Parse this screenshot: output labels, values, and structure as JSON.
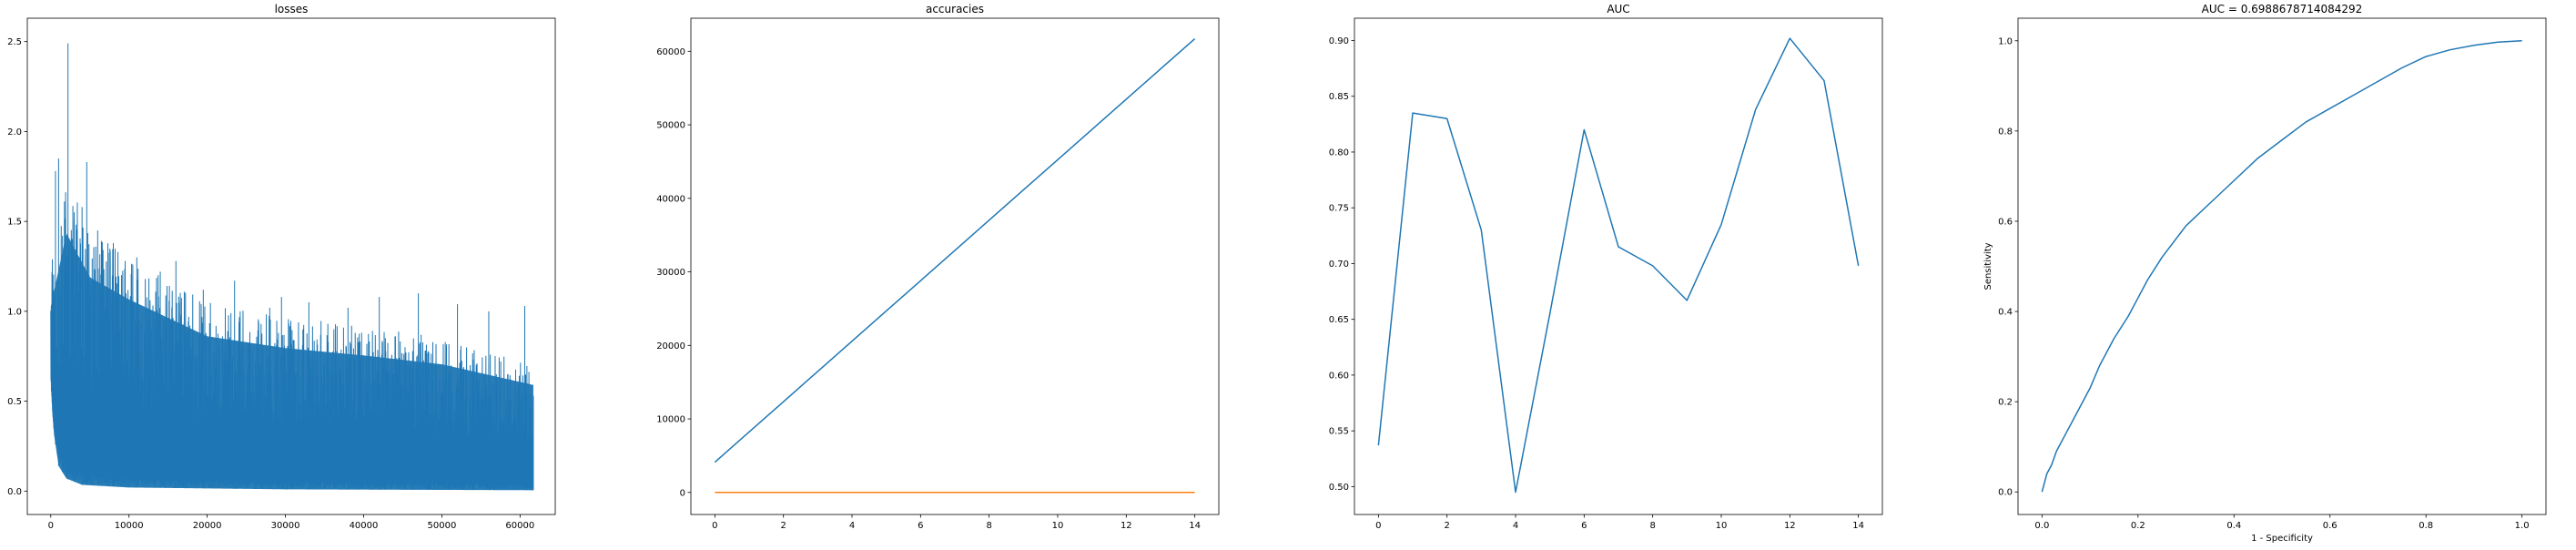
{
  "chart_data": [
    {
      "type": "line",
      "title": "losses",
      "xlabel": "",
      "ylabel": "",
      "xlim": [
        -3000,
        64500
      ],
      "ylim": [
        -0.13,
        2.63
      ],
      "xticks": [
        0,
        10000,
        20000,
        30000,
        40000,
        50000,
        60000
      ],
      "xtick_labels": [
        "0",
        "10000",
        "20000",
        "30000",
        "40000",
        "50000",
        "60000"
      ],
      "yticks": [
        0.0,
        0.5,
        1.0,
        1.5,
        2.0,
        2.5
      ],
      "ytick_labels": [
        "0.0",
        "0.5",
        "1.0",
        "1.5",
        "2.0",
        "2.5"
      ],
      "grid": false,
      "series": [
        {
          "color": "#1f77b4",
          "style": "dense-noisy",
          "n_points": 61700,
          "x_range": [
            0,
            61700
          ],
          "lower_envelope": [
            [
              0,
              0.62
            ],
            [
              300,
              0.35
            ],
            [
              1000,
              0.14
            ],
            [
              2000,
              0.07
            ],
            [
              4000,
              0.035
            ],
            [
              10000,
              0.02
            ],
            [
              30000,
              0.01
            ],
            [
              61700,
              0.005
            ]
          ],
          "upper_envelope": [
            [
              0,
              1.25
            ],
            [
              2000,
              1.75
            ],
            [
              5000,
              1.45
            ],
            [
              10000,
              1.3
            ],
            [
              20000,
              1.05
            ],
            [
              30000,
              0.97
            ],
            [
              40000,
              0.92
            ],
            [
              50000,
              0.86
            ],
            [
              61700,
              0.72
            ]
          ],
          "spikes": [
            [
              600,
              1.78
            ],
            [
              1000,
              1.85
            ],
            [
              1500,
              1.42
            ],
            [
              2200,
              2.49
            ],
            [
              3000,
              1.55
            ],
            [
              4000,
              1.58
            ],
            [
              4600,
              1.83
            ],
            [
              6000,
              1.45
            ],
            [
              8000,
              1.38
            ],
            [
              11000,
              1.3
            ],
            [
              14000,
              1.22
            ],
            [
              16000,
              1.28
            ],
            [
              19500,
              1.12
            ],
            [
              23500,
              1.17
            ],
            [
              28000,
              1.02
            ],
            [
              29500,
              1.08
            ],
            [
              33000,
              1.05
            ],
            [
              38000,
              1.02
            ],
            [
              42000,
              1.08
            ],
            [
              47000,
              1.1
            ],
            [
              52000,
              1.04
            ],
            [
              56000,
              1.0
            ],
            [
              60600,
              1.03
            ]
          ],
          "end_value": 0.53
        }
      ]
    },
    {
      "type": "line",
      "title": "accuracies",
      "xlabel": "",
      "ylabel": "",
      "xlim": [
        -0.7,
        14.7
      ],
      "ylim": [
        -3000,
        64500
      ],
      "xticks": [
        0,
        2,
        4,
        6,
        8,
        10,
        12,
        14
      ],
      "xtick_labels": [
        "0",
        "2",
        "4",
        "6",
        "8",
        "10",
        "12",
        "14"
      ],
      "yticks": [
        0,
        10000,
        20000,
        30000,
        40000,
        50000,
        60000
      ],
      "ytick_labels": [
        "0",
        "10000",
        "20000",
        "30000",
        "40000",
        "50000",
        "60000"
      ],
      "grid": false,
      "series": [
        {
          "color": "#1f77b4",
          "x": [
            0,
            1,
            2,
            3,
            4,
            5,
            6,
            7,
            8,
            9,
            10,
            11,
            12,
            13,
            14
          ],
          "values": [
            4114,
            8228,
            12342,
            16456,
            20570,
            24684,
            28798,
            32912,
            37026,
            41140,
            45254,
            49368,
            53482,
            57596,
            61710
          ]
        },
        {
          "color": "#ff7f0e",
          "x": [
            0,
            1,
            2,
            3,
            4,
            5,
            6,
            7,
            8,
            9,
            10,
            11,
            12,
            13,
            14
          ],
          "values": [
            0.75,
            0.76,
            0.76,
            0.77,
            0.77,
            0.78,
            0.78,
            0.78,
            0.79,
            0.79,
            0.79,
            0.79,
            0.8,
            0.8,
            0.8
          ]
        }
      ]
    },
    {
      "type": "line",
      "title": "AUC",
      "xlabel": "",
      "ylabel": "",
      "xlim": [
        -0.7,
        14.7
      ],
      "ylim": [
        0.475,
        0.92
      ],
      "xticks": [
        0,
        2,
        4,
        6,
        8,
        10,
        12,
        14
      ],
      "xtick_labels": [
        "0",
        "2",
        "4",
        "6",
        "8",
        "10",
        "12",
        "14"
      ],
      "yticks": [
        0.5,
        0.55,
        0.6,
        0.65,
        0.7,
        0.75,
        0.8,
        0.85,
        0.9
      ],
      "ytick_labels": [
        "0.50",
        "0.55",
        "0.60",
        "0.65",
        "0.70",
        "0.75",
        "0.80",
        "0.85",
        "0.90"
      ],
      "grid": false,
      "series": [
        {
          "color": "#1f77b4",
          "x": [
            0,
            1,
            2,
            3,
            4,
            5,
            6,
            7,
            8,
            9,
            10,
            11,
            12,
            13,
            14
          ],
          "values": [
            0.537,
            0.835,
            0.83,
            0.73,
            0.495,
            0.655,
            0.82,
            0.715,
            0.698,
            0.667,
            0.735,
            0.838,
            0.902,
            0.864,
            0.698
          ]
        }
      ]
    },
    {
      "type": "line",
      "title": "AUC = 0.6988678714084292",
      "xlabel": "1 - Specificity",
      "ylabel": "Sensitivity",
      "xlim": [
        -0.05,
        1.05
      ],
      "ylim": [
        -0.05,
        1.05
      ],
      "xticks": [
        0.0,
        0.2,
        0.4,
        0.6,
        0.8,
        1.0
      ],
      "xtick_labels": [
        "0.0",
        "0.2",
        "0.4",
        "0.6",
        "0.8",
        "1.0"
      ],
      "yticks": [
        0.0,
        0.2,
        0.4,
        0.6,
        0.8,
        1.0
      ],
      "ytick_labels": [
        "0.0",
        "0.2",
        "0.4",
        "0.6",
        "0.8",
        "1.0"
      ],
      "grid": false,
      "series": [
        {
          "color": "#1f77b4",
          "x": [
            0.0,
            0.005,
            0.01,
            0.02,
            0.03,
            0.05,
            0.07,
            0.1,
            0.12,
            0.15,
            0.18,
            0.2,
            0.22,
            0.25,
            0.3,
            0.35,
            0.4,
            0.45,
            0.5,
            0.55,
            0.6,
            0.65,
            0.7,
            0.75,
            0.8,
            0.85,
            0.9,
            0.95,
            1.0
          ],
          "values": [
            0.0,
            0.02,
            0.04,
            0.06,
            0.09,
            0.13,
            0.17,
            0.23,
            0.28,
            0.34,
            0.39,
            0.43,
            0.47,
            0.52,
            0.59,
            0.64,
            0.69,
            0.74,
            0.78,
            0.82,
            0.85,
            0.88,
            0.91,
            0.94,
            0.965,
            0.98,
            0.99,
            0.997,
            1.0
          ]
        }
      ]
    }
  ]
}
